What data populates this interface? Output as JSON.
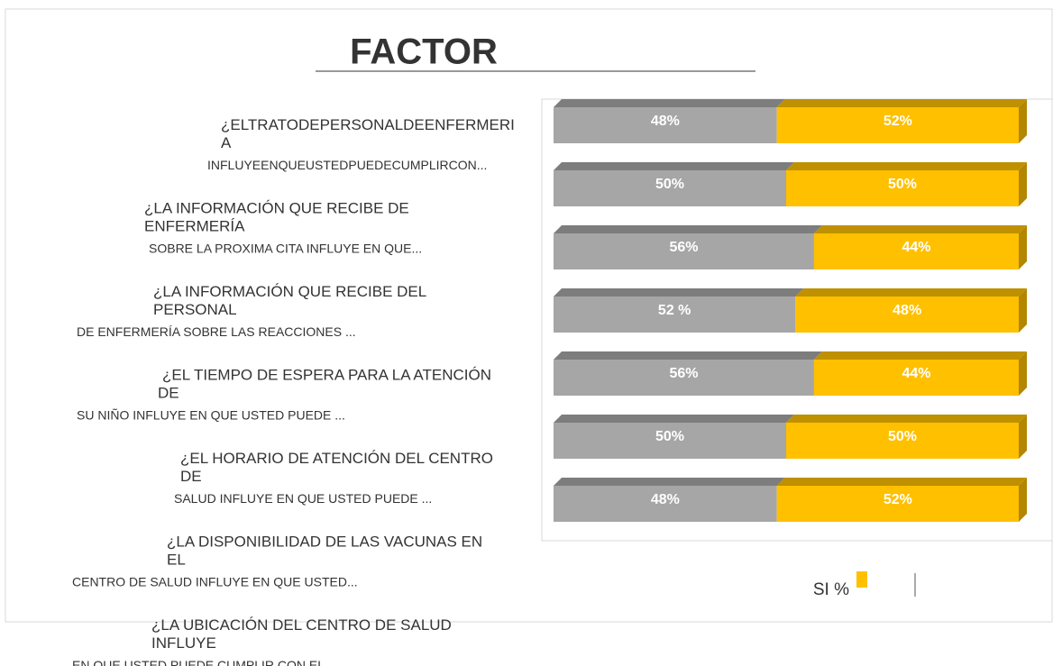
{
  "chart_data": {
    "type": "bar",
    "orientation": "horizontal",
    "stacked": true,
    "title": "FACTOR",
    "categories": [
      "¿ELTRATODEPERSONALDEENFERMERI\nA\nINFLUYEENQUEUSTEDPUEDECUMPLIRCON...",
      "¿LA INFORMACIÓN QUE RECIBE DE\nENFERMERÍA\nSOBRE LA PROXIMA CITA INFLUYE EN QUE...",
      "¿LA INFORMACIÓN QUE RECIBE DEL\nPERSONAL\nDE ENFERMERÍA SOBRE LAS REACCIONES ...",
      "¿EL TIEMPO DE ESPERA PARA LA ATENCIÓN\nDE\nSU NIÑO INFLUYE EN QUE USTED PUEDE ...",
      "¿EL HORARIO DE ATENCIÓN DEL CENTRO\nDE\nSALUD INFLUYE EN QUE USTED PUEDE ...",
      "¿LA DISPONIBILIDAD DE LAS VACUNAS EN\nEL\nCENTRO DE SALUD INFLUYE EN QUE USTED...",
      "¿LA UBICACIÓN DEL CENTRO DE SALUD\nINFLUYE\nEN QUE USTED PUEDE CUMPLIR CON EL..."
    ],
    "xlim": [
      0,
      100
    ],
    "series": [
      {
        "color": "#a6a6a6",
        "values": [
          48,
          50,
          56,
          52,
          56,
          50,
          48
        ],
        "value_labels": [
          "48%",
          "50%",
          "56%",
          "52 %",
          "56%",
          "50%",
          "48%"
        ]
      },
      {
        "name": "SI %",
        "color": "#ffc000",
        "values": [
          52,
          50,
          44,
          48,
          44,
          50,
          52
        ],
        "value_labels": [
          "52%",
          "50%",
          "44%",
          "48%",
          "44%",
          "50%",
          "52%"
        ]
      }
    ]
  }
}
